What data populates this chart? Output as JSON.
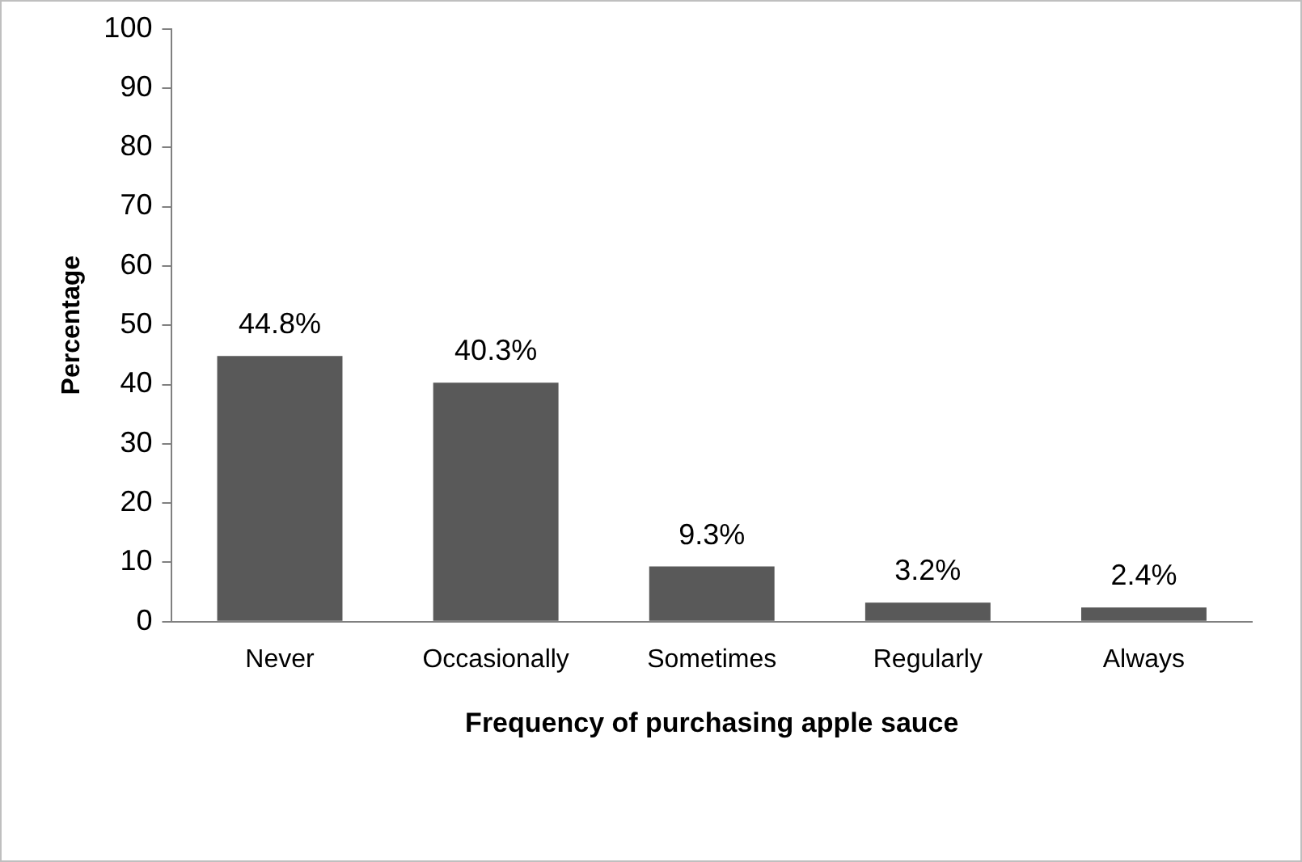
{
  "chart_data": {
    "type": "bar",
    "xlabel": "Frequency of purchasing apple sauce",
    "ylabel": "Percentage",
    "categories": [
      "Never",
      "Occasionally",
      "Sometimes",
      "Regularly",
      "Always"
    ],
    "values": [
      44.8,
      40.3,
      9.3,
      3.2,
      2.4
    ],
    "value_labels": [
      "44.8%",
      "40.3%",
      "9.3%",
      "3.2%",
      "2.4%"
    ],
    "color": "#595959",
    "ylim": [
      0,
      100
    ],
    "yticks": [
      0,
      10,
      20,
      30,
      40,
      50,
      60,
      70,
      80,
      90,
      100
    ],
    "grid": false,
    "legend": false
  }
}
